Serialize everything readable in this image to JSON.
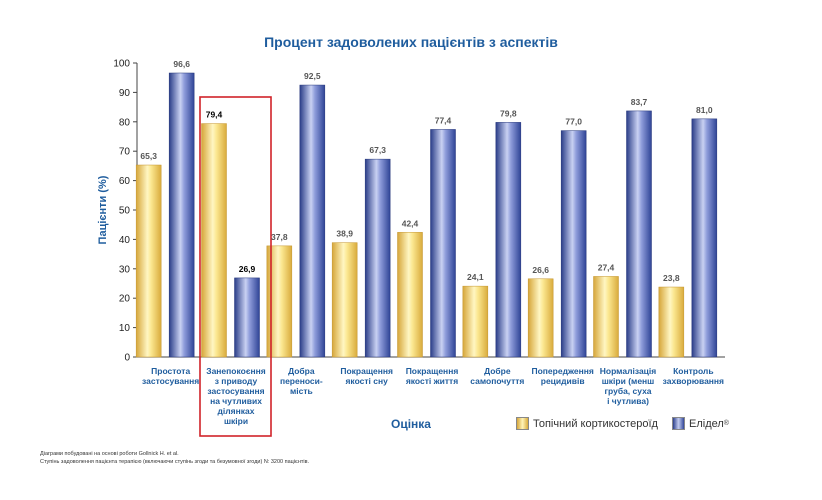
{
  "title": "Процент задоволених пацієнтів з аспектів",
  "chart_data": {
    "type": "bar",
    "title": "Процент задоволених пацієнтів з аспектів",
    "xlabel": "Оцінка",
    "ylabel": "Пацієнти (%)",
    "ylim": [
      0,
      100
    ],
    "yticks": [
      "0",
      "10",
      "20",
      "30",
      "40",
      "50",
      "60",
      "70",
      "80",
      "90",
      "100"
    ],
    "categories": [
      [
        "Простота",
        "застосування"
      ],
      [
        "Занепокоєння",
        "з приводу",
        "застосування",
        "на чутливих",
        "ділянках",
        "шкіри"
      ],
      [
        "Добра",
        "переноси-",
        "мість"
      ],
      [
        "Покращення",
        "якості сну"
      ],
      [
        "Покращення",
        "якості життя"
      ],
      [
        "Добре",
        "самопочуття"
      ],
      [
        "Попередження",
        "рецидивів"
      ],
      [
        "Нормалізація",
        "шкіри (менш",
        "груба, суха",
        "і чутлива)"
      ],
      [
        "Контроль",
        "захворювання"
      ]
    ],
    "series": [
      {
        "name": "Топічний кортикостероїд",
        "values": [
          65.3,
          79.4,
          37.8,
          38.9,
          42.4,
          24.1,
          26.6,
          27.4,
          23.8
        ],
        "labels": [
          "65,3",
          "79,4",
          "37,8",
          "38,9",
          "42,4",
          "24,1",
          "26,6",
          "27,4",
          "23,8"
        ]
      },
      {
        "name": "Елідел",
        "values": [
          96.6,
          26.9,
          92.5,
          67.3,
          77.4,
          79.8,
          77.0,
          83.7,
          81.0
        ],
        "labels": [
          "96,6",
          "26,9",
          "92,5",
          "67,3",
          "77,4",
          "79,8",
          "77,0",
          "83,7",
          "81,0"
        ]
      }
    ],
    "highlighted_category_index": 1,
    "legend_position": "bottom-right"
  },
  "legend": {
    "series1": "Топічний кортикостероїд",
    "series2": "Елідел",
    "series2_mark": "®"
  },
  "colors": {
    "title": "#1f5d9e",
    "category_label": "#1f5d9e",
    "highlight_box": "#d0232a",
    "yellow_edge": "#d6a63a",
    "yellow_light": "#fff4b8",
    "blue_edge": "#2c3f8c",
    "blue_light": "#c3ccef"
  },
  "footnotes": [
    "Діаграми побудовані на основі роботи Gollnick H. et al.",
    "Ступінь задоволення пацієнта терапією (включаючи ступінь згоди та безумовної згоди) N: 3200 пацієнтів."
  ]
}
